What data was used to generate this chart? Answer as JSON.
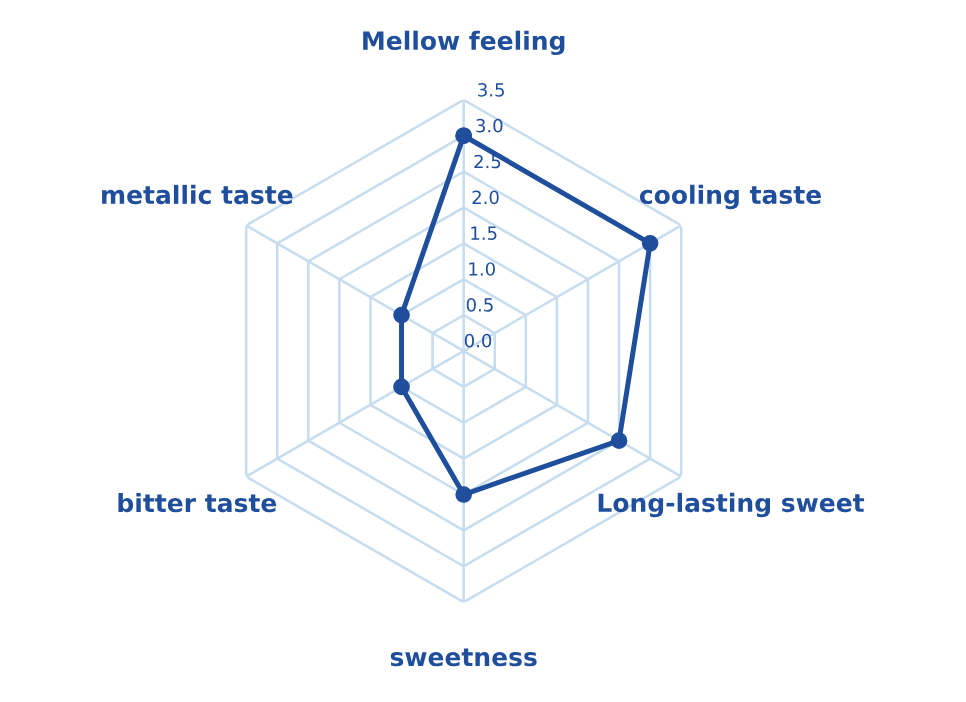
{
  "chart_data": {
    "type": "radar",
    "categories": [
      "Mellow feeling",
      "cooling taste",
      "Long-lasting sweet",
      "sweetness",
      "bitter taste",
      "metallic taste"
    ],
    "series": [
      {
        "color": "#1f4e9c",
        "values": [
          3.0,
          3.0,
          2.5,
          2.0,
          1.0,
          1.0
        ]
      }
    ],
    "ylim": [
      0,
      3.5
    ],
    "yticks": [
      {
        "value": 0,
        "label": "0.0"
      },
      {
        "value": 0.5,
        "label": "0.5"
      },
      {
        "value": 1,
        "label": "1.0"
      },
      {
        "value": 1.5,
        "label": "1.5"
      },
      {
        "value": 2,
        "label": "2.0"
      },
      {
        "value": 2.5,
        "label": "2.5"
      },
      {
        "value": 3,
        "label": "3.0"
      },
      {
        "value": 3.5,
        "label": "3.5"
      }
    ],
    "grid": true,
    "marker": "circle",
    "line_style": "solid"
  }
}
